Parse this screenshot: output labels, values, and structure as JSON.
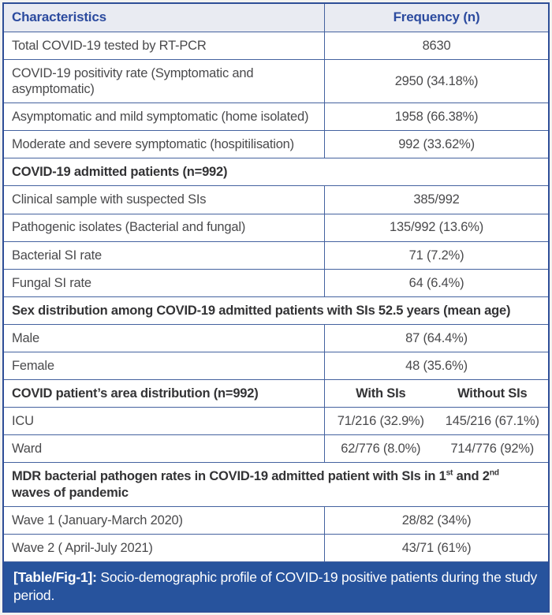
{
  "colors": {
    "border_outer": "#2e4e97",
    "border_inner": "#44629f",
    "header_bg": "#e9ebf2",
    "header_text": "#2c4b9f",
    "body_text": "#4a4a4c",
    "section_text": "#333335",
    "caption_bg": "#27539d",
    "caption_text": "#ffffff"
  },
  "table": {
    "header": {
      "characteristics": "Characteristics",
      "frequency": "Frequency (n)"
    },
    "rows": [
      {
        "type": "data",
        "label": "Total COVID-19 tested by RT-PCR",
        "value": "8630"
      },
      {
        "type": "data",
        "label": "COVID-19 positivity rate (Symptomatic and asymptomatic)",
        "value": "2950 (34.18%)"
      },
      {
        "type": "data",
        "label": "Asymptomatic and mild symptomatic (home isolated)",
        "value": "1958 (66.38%)"
      },
      {
        "type": "data",
        "label": "Moderate and severe symptomatic (hospitilisation)",
        "value": "992 (33.62%)"
      },
      {
        "type": "section",
        "label": "COVID-19 admitted patients (n=992)"
      },
      {
        "type": "data",
        "label": "Clinical sample with suspected SIs",
        "value": "385/992"
      },
      {
        "type": "data",
        "label": "Pathogenic isolates (Bacterial and fungal)",
        "value": "135/992 (13.6%)"
      },
      {
        "type": "data",
        "label": "Bacterial SI rate",
        "value": "71 (7.2%)"
      },
      {
        "type": "data",
        "label": "Fungal SI rate",
        "value": "64 (6.4%)"
      },
      {
        "type": "section",
        "label": "Sex distribution among COVID-19 admitted patients with SIs 52.5 years (mean age)"
      },
      {
        "type": "data",
        "label": "Male",
        "value": "87 (64.4%)"
      },
      {
        "type": "data",
        "label": "Female",
        "value": "48 (35.6%)"
      },
      {
        "type": "split-header",
        "label": "COVID patient’s area distribution (n=992)",
        "with_sis": "With SIs",
        "without_sis": "Without SIs"
      },
      {
        "type": "split",
        "label": "ICU",
        "with_sis": "71/216 (32.9%)",
        "without_sis": "145/216 (67.1%)"
      },
      {
        "type": "split",
        "label": "Ward",
        "with_sis": "62/776 (8.0%)",
        "without_sis": "714/776 (92%)"
      },
      {
        "type": "section-sup",
        "part1": "MDR bacterial pathogen rates in COVID-19 admitted patient with SIs in 1",
        "sup1": "st",
        "part2": " and 2",
        "sup2": "nd",
        "part3": " waves of pandemic"
      },
      {
        "type": "data",
        "label": "Wave 1 (January-March 2020)",
        "value": "28/82 (34%)"
      },
      {
        "type": "data",
        "label": "Wave 2 ( April-July 2021)",
        "value": "43/71 (61%)"
      }
    ]
  },
  "caption": {
    "label": "[Table/Fig-1]:",
    "text": " Socio-demographic profile of COVID-19 positive patients during the study period."
  }
}
